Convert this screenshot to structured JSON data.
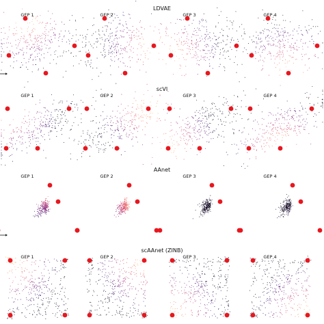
{
  "colors": {
    "archetype": "#e8171f",
    "cell_colormap": [
      "#000004",
      "#3b0f70",
      "#8c2981",
      "#de4968",
      "#fe9f6d",
      "#fcfdbf"
    ]
  },
  "chart_data": [
    {
      "type": "scatter",
      "title": "LDVAE",
      "panels": [
        {
          "label": "GEP 1"
        },
        {
          "label": "GEP 2"
        },
        {
          "label": "GEP 3"
        },
        {
          "label": "GEP 4"
        }
      ],
      "archetypes": [
        [
          -0.45,
          1.0
        ],
        [
          1.35,
          0.0
        ],
        [
          -1.05,
          -0.35
        ],
        [
          0.3,
          -1.0
        ]
      ],
      "cloud": {
        "center": [
          0.0,
          0.1
        ],
        "spread": [
          0.7,
          0.5
        ]
      }
    },
    {
      "type": "scatter",
      "title": "scVI",
      "panels": [
        {
          "label": "GEP 1"
        },
        {
          "label": "GEP 2"
        },
        {
          "label": "GEP 3"
        },
        {
          "label": "GEP 4"
        }
      ],
      "archetypes": [
        [
          -1.1,
          0.65
        ],
        [
          1.15,
          0.65
        ],
        [
          -1.15,
          -0.8
        ],
        [
          0.0,
          -0.8
        ]
      ],
      "cloud": {
        "center": [
          0.1,
          0.0
        ],
        "spread": [
          0.85,
          0.38
        ]
      }
    },
    {
      "type": "scatter",
      "title": "AAnet",
      "panels": [
        {
          "label": "GEP 1"
        },
        {
          "label": "GEP 2"
        },
        {
          "label": "GEP 3"
        },
        {
          "label": "GEP 4"
        }
      ],
      "archetypes": [
        [
          0.45,
          0.8
        ],
        [
          0.75,
          0.2
        ],
        [
          -1.45,
          -0.85
        ],
        [
          1.45,
          -0.85
        ]
      ],
      "cloud": {
        "center": [
          0.38,
          0.08
        ],
        "spread": [
          0.2,
          0.12
        ]
      }
    },
    {
      "type": "scatter",
      "title": "scAAnet (ZINB)",
      "panels": [
        {
          "label": "GEP 1"
        },
        {
          "label": "GEP 2"
        },
        {
          "label": "GEP 3"
        },
        {
          "label": "GEP 4"
        }
      ],
      "archetypes": [
        [
          -1.0,
          1.0
        ],
        [
          1.0,
          1.0
        ],
        [
          -1.0,
          -1.0
        ],
        [
          1.0,
          -1.0
        ]
      ],
      "cloud": {
        "center": [
          0.0,
          0.0
        ],
        "spread": [
          1.0,
          1.0
        ]
      }
    }
  ]
}
